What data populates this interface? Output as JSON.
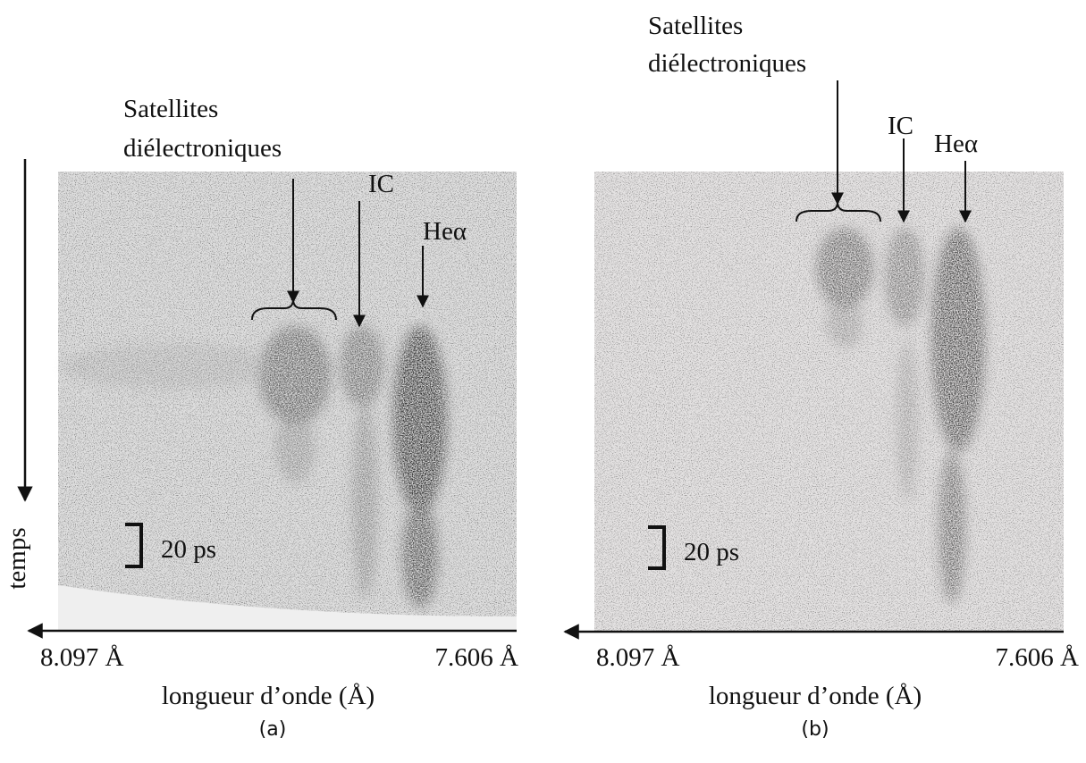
{
  "panels": [
    {
      "satellites": [
        "Satellites",
        "diélectroniques"
      ],
      "ic": "IC",
      "he": "Heα",
      "scale": "20 ps",
      "time_label": "temps",
      "x_left": "8.097 Å",
      "x_right": "7.606 Å",
      "x_label": "longueur d’onde (Å)",
      "caption": "(a)"
    },
    {
      "satellites": [
        "Satellites",
        "diélectroniques"
      ],
      "ic": "IC",
      "he": "Heα",
      "scale": "20 ps",
      "x_left": "8.097 Å",
      "x_right": "7.606 Å",
      "x_label": "longueur d’onde (Å)",
      "caption": "(b)"
    }
  ]
}
